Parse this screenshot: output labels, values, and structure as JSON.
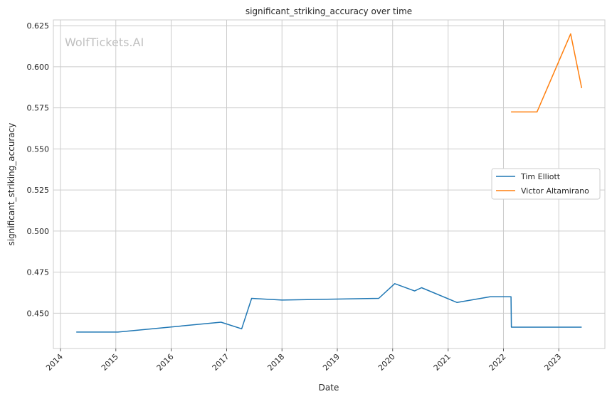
{
  "chart_data": {
    "type": "line",
    "title": "significant_striking_accuracy over time",
    "xlabel": "Date",
    "ylabel": "significant_striking_accuracy",
    "watermark": "WolfTickets.AI",
    "grid": true,
    "legend_position": "center-right",
    "xlim": [
      "2013-11-15",
      "2023-11-01"
    ],
    "ylim": [
      0.4285,
      0.6285
    ],
    "x_ticks": [
      "2014",
      "2015",
      "2016",
      "2017",
      "2018",
      "2019",
      "2020",
      "2021",
      "2022",
      "2023"
    ],
    "y_ticks": [
      "0.450",
      "0.475",
      "0.500",
      "0.525",
      "0.550",
      "0.575",
      "0.600",
      "0.625"
    ],
    "series": [
      {
        "name": "Tim Elliott",
        "color": "#1f77b4",
        "x": [
          "2014-04-15",
          "2015-01-15",
          "2016-11-25",
          "2017-04-10",
          "2017-06-15",
          "2018-01-01",
          "2019-10-01",
          "2020-01-15",
          "2020-05-25",
          "2020-07-10",
          "2021-03-01",
          "2021-10-05",
          "2022-02-20",
          "2022-02-22",
          "2023-06-01"
        ],
        "y": [
          0.4385,
          0.4385,
          0.4445,
          0.4405,
          0.459,
          0.458,
          0.459,
          0.468,
          0.4635,
          0.4655,
          0.4565,
          0.46,
          0.46,
          0.4415,
          0.4415
        ]
      },
      {
        "name": "Victor Altamirano",
        "color": "#ff7f0e",
        "x": [
          "2022-02-20",
          "2022-08-10",
          "2023-03-20",
          "2023-06-01"
        ],
        "y": [
          0.5725,
          0.5725,
          0.62,
          0.587
        ]
      }
    ]
  }
}
